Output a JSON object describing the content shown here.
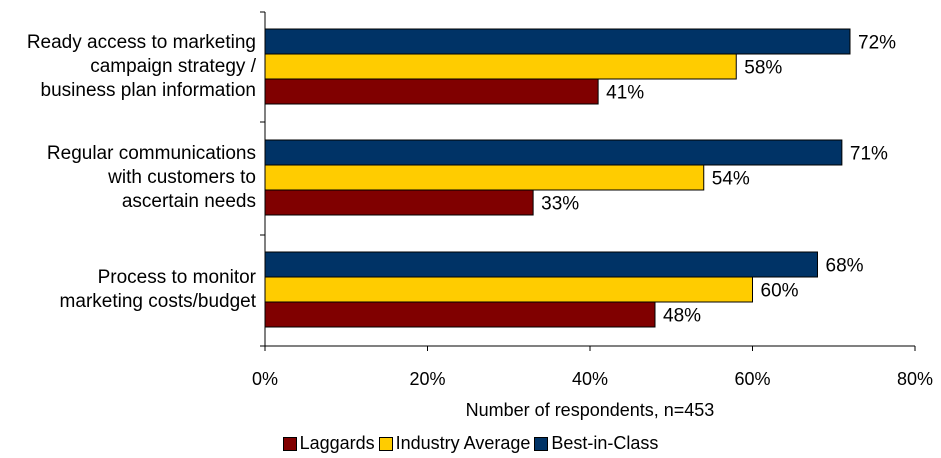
{
  "chart_data": {
    "type": "bar",
    "orientation": "horizontal",
    "categories": [
      "Ready access to marketing\ncampaign strategy /\nbusiness plan information",
      "Regular communications\nwith customers to\nascertain needs",
      "Process to monitor\nmarketing costs/budget"
    ],
    "series": [
      {
        "name": "Best-in-Class",
        "color": "#003366",
        "values": [
          72,
          71,
          68
        ]
      },
      {
        "name": "Industry Average",
        "color": "#ffcc00",
        "values": [
          58,
          54,
          60
        ]
      },
      {
        "name": "Laggards",
        "color": "#800000",
        "values": [
          41,
          33,
          48
        ]
      }
    ],
    "legend_order": [
      "Laggards",
      "Industry Average",
      "Best-in-Class"
    ],
    "xlabel": "Number of respondents, n=453",
    "xlim": [
      0,
      80
    ],
    "xticks": [
      "0%",
      "20%",
      "40%",
      "60%",
      "80%"
    ],
    "value_suffix": "%",
    "grid": false,
    "legend_position": "bottom"
  }
}
